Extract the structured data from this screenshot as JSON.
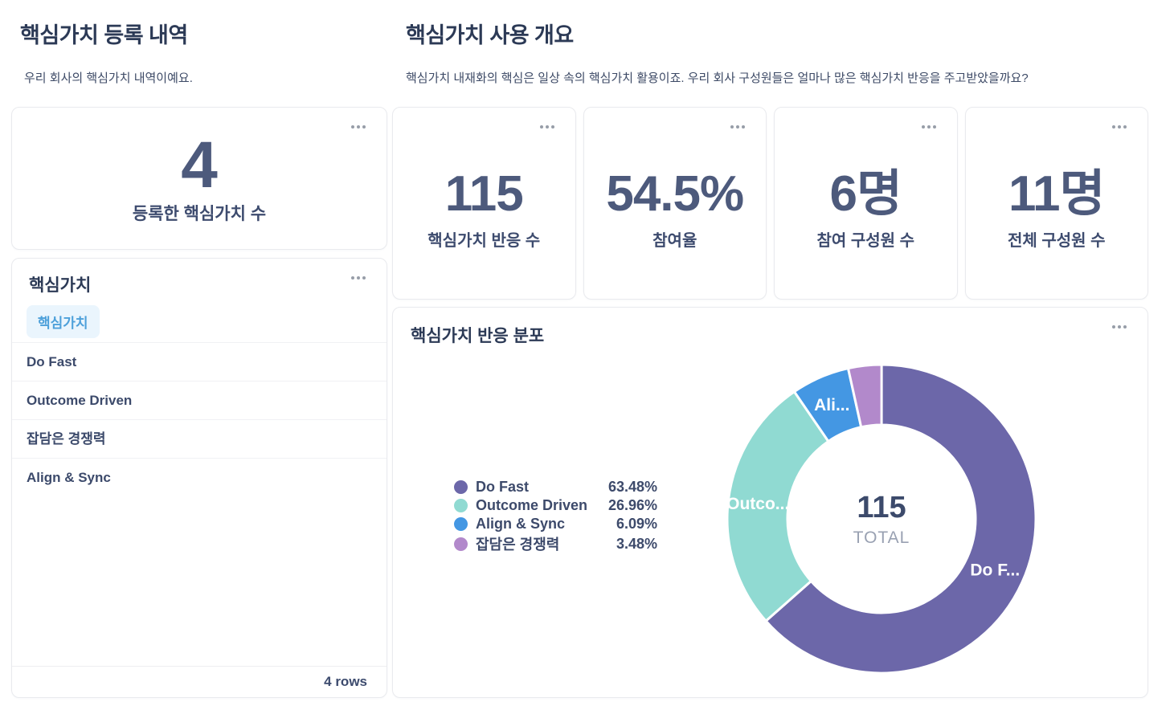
{
  "left_panel": {
    "title": "핵심가치 등록 내역",
    "subtitle": "우리 회사의 핵심가치 내역이예요.",
    "registered_stat": {
      "value": "4",
      "label": "등록한 핵심가치 수"
    },
    "table": {
      "title": "핵심가치",
      "column_tag": "핵심가치",
      "rows": [
        "Do Fast",
        "Outcome Driven",
        "잡담은 경쟁력",
        "Align & Sync"
      ],
      "footer": "4 rows"
    }
  },
  "right_panel": {
    "title": "핵심가치 사용 개요",
    "subtitle": "핵심가치 내재화의 핵심은 일상 속의 핵심가치 활용이죠. 우리 회사 구성원들은 얼마나 많은 핵심가치 반응을 주고받았을까요?",
    "stats": [
      {
        "value": "115",
        "label": "핵심가치 반응 수"
      },
      {
        "value": "54.5%",
        "label": "참여율"
      },
      {
        "value": "6명",
        "label": "참여 구성원 수"
      },
      {
        "value": "11명",
        "label": "전체 구성원 수"
      }
    ]
  },
  "chart_data": {
    "type": "pie",
    "subtype": "donut",
    "title": "핵심가치 반응 분포",
    "total_value": "115",
    "total_label": "TOTAL",
    "legend_position": "left-middle",
    "start_angle_deg": 0,
    "direction": "clockwise",
    "series": [
      {
        "name": "Do Fast",
        "pct": 63.48,
        "display": "63.48%",
        "color": "#6c67a9",
        "slice_label": "Do F..."
      },
      {
        "name": "Outcome Driven",
        "pct": 26.96,
        "display": "26.96%",
        "color": "#90dad2",
        "slice_label": "Outco..."
      },
      {
        "name": "Align & Sync",
        "pct": 6.09,
        "display": "6.09%",
        "color": "#4497e3",
        "slice_label": "Ali..."
      },
      {
        "name": "잡담은 경쟁력",
        "pct": 3.48,
        "display": "3.48%",
        "color": "#b289cb",
        "slice_label": ""
      }
    ]
  },
  "icons": {
    "card_menu": "ellipsis-horizontal"
  },
  "colors": {
    "heading": "#2c3a56",
    "stat_number": "#4d5a7c",
    "stat_label": "#3d4b6e",
    "tag_bg": "#eaf5fd",
    "tag_text": "#4da0da",
    "card_border": "#e9eaee",
    "total_label": "#99a1b2"
  }
}
